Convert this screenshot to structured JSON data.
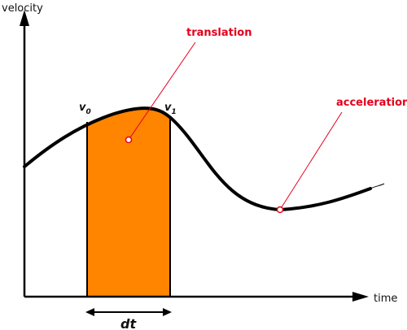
{
  "axes": {
    "y_label": "velocity",
    "x_label": "time"
  },
  "labels": {
    "v0_main": "v",
    "v0_sub": "0",
    "v1_main": "v",
    "v1_sub": "1",
    "dt": "dt"
  },
  "callouts": {
    "translation": "translation",
    "acceleration": "acceleration"
  },
  "colors": {
    "fill": "#ff8400",
    "curve": "#000000",
    "callout": "#e3001b"
  }
}
